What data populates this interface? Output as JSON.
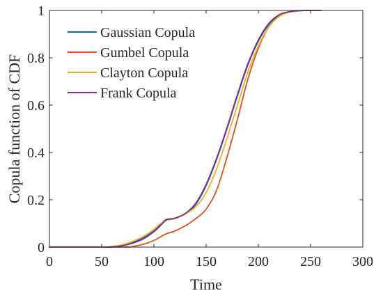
{
  "chart_data": {
    "type": "line",
    "xlabel": "Time",
    "ylabel": "Copula function of CDF",
    "xlim": [
      0,
      300
    ],
    "ylim": [
      0,
      1
    ],
    "xticks": [
      "0",
      "50",
      "100",
      "150",
      "200",
      "250",
      "300"
    ],
    "yticks": [
      "0",
      "0.2",
      "0.4",
      "0.6",
      "0.8",
      "1"
    ],
    "grid": false,
    "legend_position": "top-left",
    "series": [
      {
        "name": "Gaussian Copula",
        "color": "#0072BD",
        "x": [
          0,
          50,
          60,
          70,
          80,
          90,
          100,
          105,
          110,
          113,
          120,
          130,
          140,
          150,
          160,
          170,
          180,
          190,
          200,
          210,
          220,
          230,
          240,
          250,
          260
        ],
        "y": [
          0,
          0,
          0.002,
          0.008,
          0.02,
          0.04,
          0.07,
          0.09,
          0.112,
          0.118,
          0.122,
          0.14,
          0.18,
          0.26,
          0.37,
          0.5,
          0.64,
          0.77,
          0.87,
          0.94,
          0.98,
          0.993,
          0.999,
          1.0,
          1.0
        ]
      },
      {
        "name": "Gumbel Copula",
        "color": "#D95319",
        "x": [
          0,
          70,
          80,
          90,
          100,
          105,
          110,
          113,
          120,
          130,
          140,
          150,
          160,
          170,
          180,
          190,
          200,
          210,
          220,
          230,
          240,
          250,
          260
        ],
        "y": [
          0,
          0,
          0.003,
          0.012,
          0.028,
          0.04,
          0.052,
          0.058,
          0.068,
          0.09,
          0.12,
          0.16,
          0.24,
          0.38,
          0.54,
          0.71,
          0.84,
          0.93,
          0.975,
          0.993,
          0.999,
          1.0,
          1.0
        ]
      },
      {
        "name": "Clayton Copula",
        "color": "#EDB120",
        "x": [
          0,
          50,
          60,
          70,
          80,
          90,
          100,
          105,
          110,
          113,
          120,
          130,
          140,
          150,
          160,
          170,
          180,
          190,
          200,
          210,
          220,
          230,
          240,
          250,
          260
        ],
        "y": [
          0,
          0,
          0.003,
          0.01,
          0.025,
          0.045,
          0.075,
          0.095,
          0.11,
          0.115,
          0.12,
          0.14,
          0.17,
          0.23,
          0.33,
          0.46,
          0.6,
          0.74,
          0.85,
          0.93,
          0.975,
          0.993,
          0.999,
          1.0,
          1.0
        ]
      },
      {
        "name": "Frank Copula",
        "color": "#7E2F8E",
        "x": [
          0,
          50,
          60,
          70,
          80,
          90,
          100,
          105,
          110,
          113,
          120,
          130,
          140,
          150,
          160,
          170,
          180,
          190,
          200,
          210,
          220,
          230,
          240,
          250,
          260
        ],
        "y": [
          0,
          0,
          0.001,
          0.006,
          0.017,
          0.035,
          0.065,
          0.085,
          0.108,
          0.117,
          0.122,
          0.142,
          0.185,
          0.265,
          0.375,
          0.505,
          0.645,
          0.775,
          0.875,
          0.945,
          0.982,
          0.995,
          0.999,
          1.0,
          1.0
        ]
      }
    ]
  }
}
